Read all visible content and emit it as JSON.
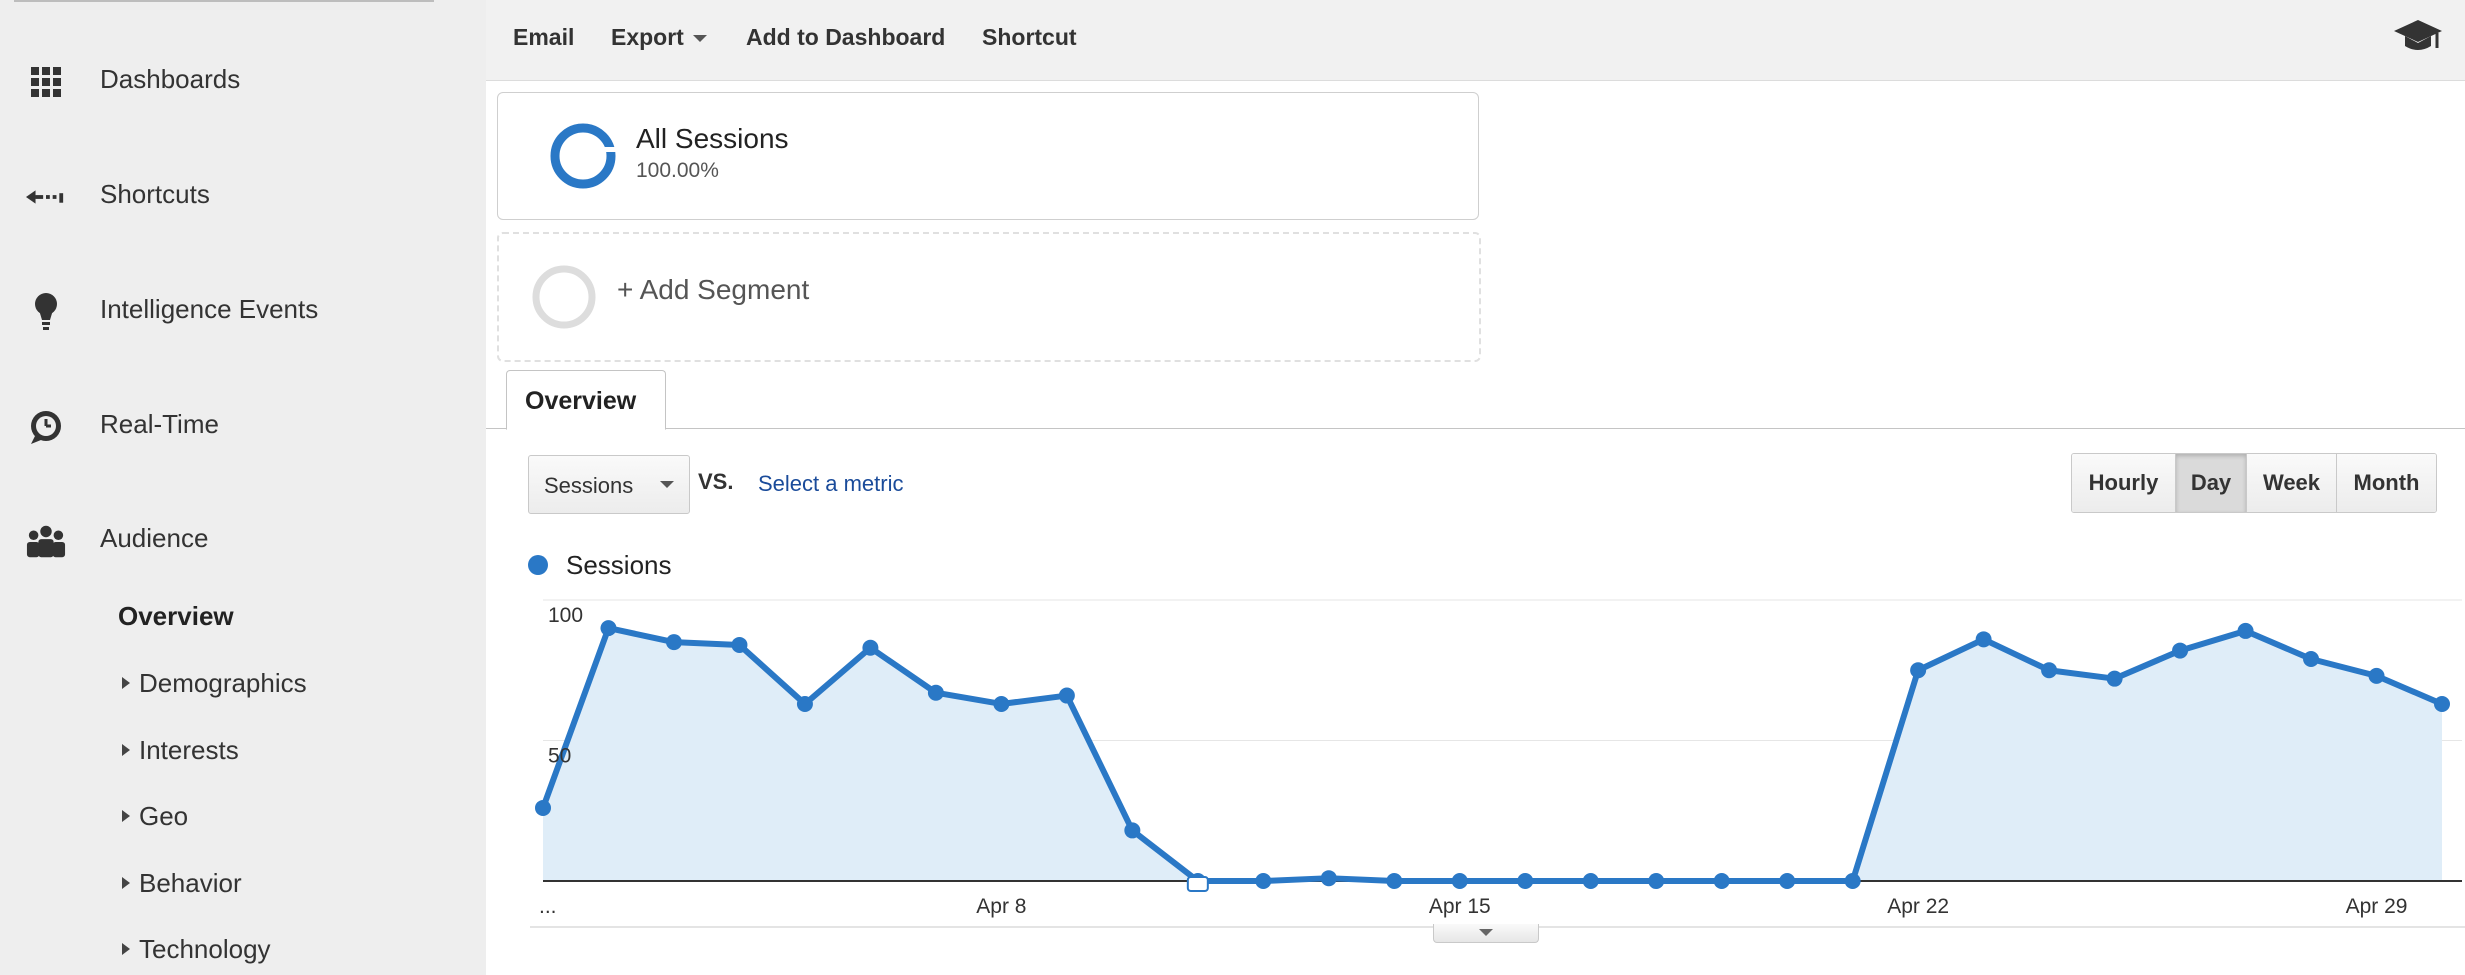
{
  "sidebar": {
    "items": [
      {
        "label": "Dashboards",
        "icon": "grid-icon"
      },
      {
        "label": "Shortcuts",
        "icon": "shortcut-arrow-icon"
      },
      {
        "label": "Intelligence Events",
        "icon": "lightbulb-icon"
      },
      {
        "label": "Real-Time",
        "icon": "clock-icon"
      },
      {
        "label": "Audience",
        "icon": "people-icon"
      }
    ],
    "audience_subitems": [
      {
        "label": "Overview",
        "active": true
      },
      {
        "label": "Demographics"
      },
      {
        "label": "Interests"
      },
      {
        "label": "Geo"
      },
      {
        "label": "Behavior"
      },
      {
        "label": "Technology"
      }
    ]
  },
  "toolbar": {
    "email": "Email",
    "export": "Export",
    "add_to_dashboard": "Add to Dashboard",
    "shortcut": "Shortcut",
    "help_icon": "graduation-cap-icon"
  },
  "segments": {
    "active": {
      "title": "All Sessions",
      "percent": "100.00%"
    },
    "add_label": "+ Add Segment"
  },
  "tabs": {
    "overview": "Overview"
  },
  "controls": {
    "metric": "Sessions",
    "vs": "VS.",
    "select_metric": "Select a metric",
    "granularity": [
      "Hourly",
      "Day",
      "Week",
      "Month"
    ],
    "granularity_selected": "Day"
  },
  "colors": {
    "series": "#2a78c6",
    "area_fill": "#dfedf8",
    "link": "#1a4b9a"
  },
  "chart_data": {
    "type": "area",
    "series": [
      {
        "name": "Sessions",
        "values": [
          26,
          90,
          85,
          84,
          63,
          83,
          67,
          63,
          66,
          18,
          0,
          0,
          1,
          0,
          0,
          0,
          0,
          0,
          0,
          0,
          0,
          75,
          86,
          75,
          72,
          82,
          89,
          79,
          73,
          63
        ]
      }
    ],
    "x_tick_labels": [
      "...",
      "Apr 8",
      "Apr 15",
      "Apr 22",
      "Apr 29"
    ],
    "y_tick_labels": [
      "100",
      "50"
    ],
    "ylim": [
      0,
      100
    ],
    "grid": true,
    "annotation_marker_at_point": 10
  }
}
